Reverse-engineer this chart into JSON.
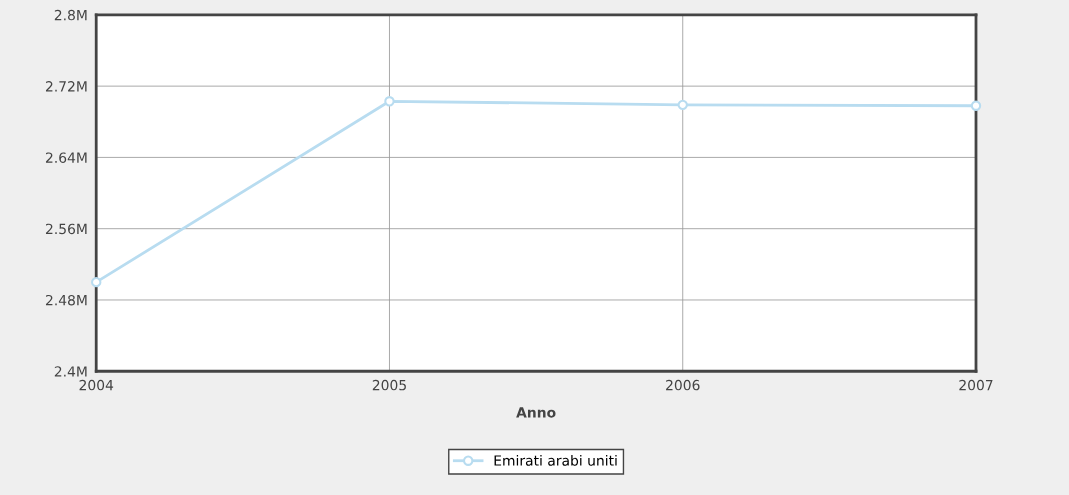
{
  "chart_data": {
    "type": "line",
    "xlabel": "Anno",
    "x": [
      2004,
      2005,
      2006,
      2007
    ],
    "series": [
      {
        "name": "Emirati arabi uniti",
        "color": "#b8dcf0",
        "values": [
          2.5,
          2.703,
          2.699,
          2.698
        ]
      }
    ],
    "xlim": [
      2004,
      2007
    ],
    "xticks": [
      2004,
      2005,
      2006,
      2007
    ],
    "ylim": [
      2.4,
      2.8
    ],
    "yticks": [
      {
        "value": 2.4,
        "label": "2.4M"
      },
      {
        "value": 2.48,
        "label": "2.48M"
      },
      {
        "value": 2.56,
        "label": "2.56M"
      },
      {
        "value": 2.64,
        "label": "2.64M"
      },
      {
        "value": 2.72,
        "label": "2.72M"
      },
      {
        "value": 2.8,
        "label": "2.8M"
      }
    ],
    "grid": true,
    "legend": "bottom",
    "marker": "circle",
    "line_style": "solid"
  }
}
